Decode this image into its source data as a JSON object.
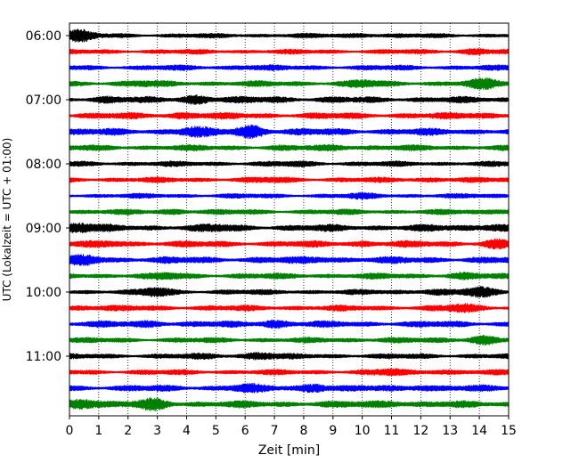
{
  "chart_data": {
    "type": "line",
    "title": "",
    "xlabel": "Zeit  [min]",
    "ylabel": "UTC (Lokalzeit = UTC + 01:00)",
    "xlim": [
      0,
      15
    ],
    "x_ticks": [
      "0",
      "1",
      "2",
      "3",
      "4",
      "5",
      "6",
      "7",
      "8",
      "9",
      "10",
      "11",
      "12",
      "13",
      "14",
      "15"
    ],
    "y_ticks": [
      {
        "label": "06:00",
        "trace": 0
      },
      {
        "label": "07:00",
        "trace": 4
      },
      {
        "label": "08:00",
        "trace": 8
      },
      {
        "label": "09:00",
        "trace": 12
      },
      {
        "label": "10:00",
        "trace": 16
      },
      {
        "label": "11:00",
        "trace": 20
      }
    ],
    "grid": "vertical dotted",
    "colors": [
      "#000000",
      "#ff0000",
      "#0000ff",
      "#008000"
    ],
    "trace_interval_min": 15,
    "traces": [
      {
        "start": "06:00",
        "amp": 0.45,
        "events": [
          [
            0.3,
            2.2
          ],
          [
            10.0,
            1.3
          ]
        ]
      },
      {
        "start": "06:15",
        "amp": 0.45,
        "events": [
          [
            13.9,
            1.5
          ]
        ]
      },
      {
        "start": "06:30",
        "amp": 0.5,
        "events": [
          [
            6.0,
            1.2
          ]
        ]
      },
      {
        "start": "06:45",
        "amp": 0.55,
        "events": [
          [
            10.0,
            1.4
          ],
          [
            14.2,
            1.7
          ],
          [
            2.5,
            1.2
          ]
        ]
      },
      {
        "start": "07:00",
        "amp": 0.6,
        "events": [
          [
            4.3,
            1.6
          ],
          [
            1.2,
            1.2
          ],
          [
            7.0,
            1.2
          ]
        ]
      },
      {
        "start": "07:15",
        "amp": 0.6,
        "events": [
          [
            4.0,
            1.3
          ],
          [
            14.0,
            1.2
          ]
        ]
      },
      {
        "start": "07:30",
        "amp": 0.65,
        "events": [
          [
            6.2,
            1.9
          ],
          [
            4.2,
            1.5
          ]
        ]
      },
      {
        "start": "07:45",
        "amp": 0.55,
        "events": [
          [
            9.2,
            1.3
          ]
        ]
      },
      {
        "start": "08:00",
        "amp": 0.5,
        "events": [
          [
            7.8,
            1.2
          ]
        ]
      },
      {
        "start": "08:15",
        "amp": 0.5,
        "events": [
          [
            7.0,
            1.2
          ],
          [
            12.5,
            1.2
          ]
        ]
      },
      {
        "start": "08:30",
        "amp": 0.45,
        "events": [
          [
            10.0,
            1.3
          ]
        ]
      },
      {
        "start": "08:45",
        "amp": 0.5,
        "events": [
          [
            3.6,
            1.3
          ],
          [
            14.8,
            1.3
          ]
        ]
      },
      {
        "start": "09:00",
        "amp": 0.65,
        "events": [
          [
            0.3,
            1.6
          ],
          [
            14.5,
            1.4
          ],
          [
            5.0,
            1.2
          ]
        ]
      },
      {
        "start": "09:15",
        "amp": 0.6,
        "events": [
          [
            14.6,
            1.5
          ],
          [
            1.5,
            1.2
          ],
          [
            10.0,
            1.2
          ]
        ]
      },
      {
        "start": "09:30",
        "amp": 0.65,
        "events": [
          [
            0.6,
            1.5
          ],
          [
            8.6,
            1.2
          ]
        ]
      },
      {
        "start": "09:45",
        "amp": 0.55,
        "events": [
          [
            3.4,
            1.3
          ],
          [
            13.4,
            1.3
          ]
        ]
      },
      {
        "start": "10:00",
        "amp": 0.5,
        "events": [
          [
            3.0,
            1.7
          ],
          [
            14.0,
            1.8
          ],
          [
            12.4,
            1.4
          ]
        ]
      },
      {
        "start": "10:15",
        "amp": 0.55,
        "events": [
          [
            13.4,
            1.5
          ],
          [
            0.5,
            1.2
          ]
        ]
      },
      {
        "start": "10:30",
        "amp": 0.6,
        "events": [
          [
            7.0,
            1.5
          ],
          [
            2.8,
            1.3
          ]
        ]
      },
      {
        "start": "10:45",
        "amp": 0.5,
        "events": [
          [
            14.1,
            1.8
          ],
          [
            10.8,
            1.2
          ]
        ]
      },
      {
        "start": "11:00",
        "amp": 0.5,
        "events": [
          [
            6.5,
            1.6
          ],
          [
            4.7,
            1.2
          ]
        ]
      },
      {
        "start": "11:15",
        "amp": 0.5,
        "events": [
          [
            11.0,
            1.4
          ],
          [
            12.6,
            1.3
          ]
        ]
      },
      {
        "start": "11:30",
        "amp": 0.6,
        "events": [
          [
            8.4,
            1.6
          ],
          [
            6.0,
            1.4
          ],
          [
            12.0,
            1.3
          ]
        ]
      },
      {
        "start": "11:45",
        "amp": 0.65,
        "events": [
          [
            0.4,
            1.8
          ],
          [
            2.9,
            1.7
          ],
          [
            11.0,
            1.3
          ]
        ]
      }
    ]
  }
}
